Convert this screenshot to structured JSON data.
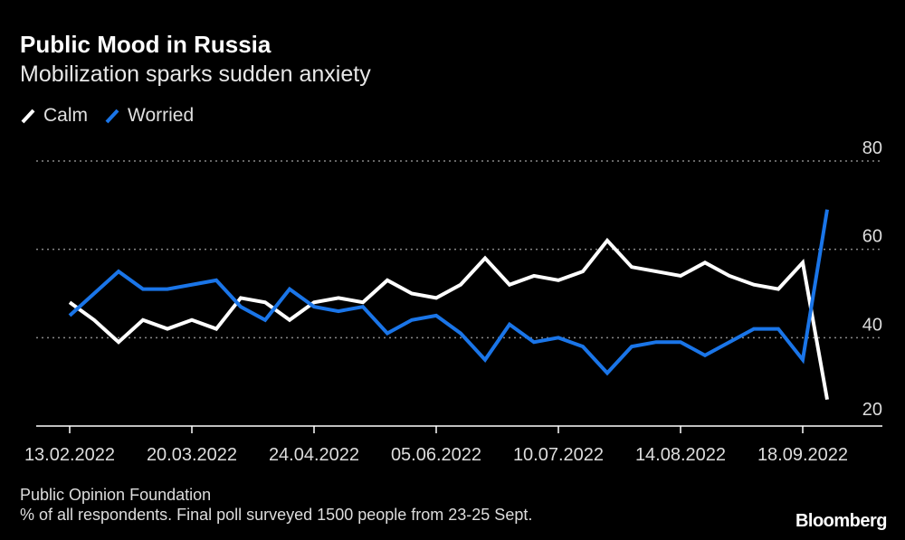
{
  "chart_data": {
    "type": "line",
    "title": "Public Mood in Russia",
    "subtitle": "Mobilization sparks sudden anxiety",
    "categories": [
      "13.02.2022",
      "20.02.2022",
      "27.02.2022",
      "06.03.2022",
      "13.03.2022",
      "20.03.2022",
      "27.03.2022",
      "03.04.2022",
      "10.04.2022",
      "17.04.2022",
      "24.04.2022",
      "01.05.2022",
      "15.05.2022",
      "22.05.2022",
      "29.05.2022",
      "05.06.2022",
      "12.06.2022",
      "19.06.2022",
      "26.06.2022",
      "03.07.2022",
      "10.07.2022",
      "17.07.2022",
      "24.07.2022",
      "31.07.2022",
      "07.08.2022",
      "14.08.2022",
      "21.08.2022",
      "28.08.2022",
      "04.09.2022",
      "11.09.2022",
      "18.09.2022",
      "25.09.2022"
    ],
    "x_tick_labels": [
      "13.02.2022",
      "20.03.2022",
      "24.04.2022",
      "05.06.2022",
      "10.07.2022",
      "14.08.2022",
      "18.09.2022"
    ],
    "y_ticks": [
      20,
      40,
      60,
      80
    ],
    "ylim": [
      20,
      80
    ],
    "grid": true,
    "legend_position": "top-left",
    "series": [
      {
        "name": "Calm",
        "color": "#ffffff",
        "values": [
          48,
          44,
          39,
          44,
          42,
          44,
          42,
          49,
          48,
          44,
          48,
          49,
          48,
          53,
          50,
          49,
          52,
          58,
          52,
          54,
          53,
          55,
          62,
          56,
          55,
          54,
          57,
          54,
          52,
          51,
          57,
          26
        ]
      },
      {
        "name": "Worried",
        "color": "#1a75e8",
        "values": [
          45,
          50,
          55,
          51,
          51,
          52,
          53,
          47,
          44,
          51,
          47,
          46,
          47,
          41,
          44,
          45,
          41,
          35,
          43,
          39,
          40,
          38,
          32,
          38,
          39,
          39,
          36,
          39,
          42,
          42,
          35,
          69
        ]
      }
    ]
  },
  "footer": {
    "source": "Public Opinion Foundation",
    "note": "% of all respondents. Final poll surveyed 1500 people from 23-25 Sept.",
    "logo": "Bloomberg"
  }
}
